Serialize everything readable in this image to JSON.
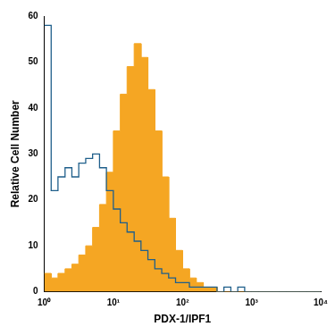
{
  "chart_data": {
    "type": "histogram",
    "x_label": "PDX-1/IPF1",
    "y_label": "Relative Cell Number",
    "log": "x",
    "grid": false,
    "xlim": [
      1,
      10000
    ],
    "ylim": [
      0,
      60
    ],
    "xticks": [
      {
        "value": 1,
        "label": "10⁰"
      },
      {
        "value": 10,
        "label": "10¹"
      },
      {
        "value": 100,
        "label": "10²"
      },
      {
        "value": 1000,
        "label": "10³"
      },
      {
        "value": 10000,
        "label": "10⁴"
      }
    ],
    "yticks": [
      0,
      10,
      20,
      30,
      40,
      50,
      60
    ],
    "bins": [
      1,
      1.26,
      1.58,
      2.0,
      2.51,
      3.16,
      3.98,
      5.01,
      6.31,
      7.94,
      10,
      12.6,
      15.8,
      20,
      25.1,
      31.6,
      39.8,
      50.1,
      63.1,
      79.4,
      100,
      126,
      158,
      200,
      251,
      316,
      398,
      501,
      631,
      794,
      1000,
      1260,
      1580,
      2000,
      2510,
      3160,
      3980,
      5010,
      6310,
      7940,
      10000
    ],
    "series": [
      {
        "type": "area",
        "color": "#f5a623",
        "values": [
          4,
          3,
          4,
          5,
          6,
          8,
          10,
          14,
          19,
          26,
          35,
          43,
          49,
          54,
          51,
          44,
          35,
          25,
          16,
          9,
          5,
          3,
          2,
          1,
          1,
          0,
          0,
          0,
          0,
          0,
          0,
          0,
          0,
          0,
          0,
          0,
          0,
          0,
          0,
          0
        ]
      },
      {
        "type": "line",
        "color": "#1f5f8b",
        "values": [
          58,
          22,
          25,
          27,
          25,
          28,
          29,
          30,
          27,
          22,
          18,
          15,
          13,
          11,
          9,
          7,
          5,
          4,
          3,
          2,
          2,
          1,
          1,
          1,
          1,
          0,
          1,
          0,
          1,
          0,
          0,
          0,
          0,
          0,
          0,
          0,
          0,
          0,
          0,
          0
        ]
      }
    ]
  }
}
